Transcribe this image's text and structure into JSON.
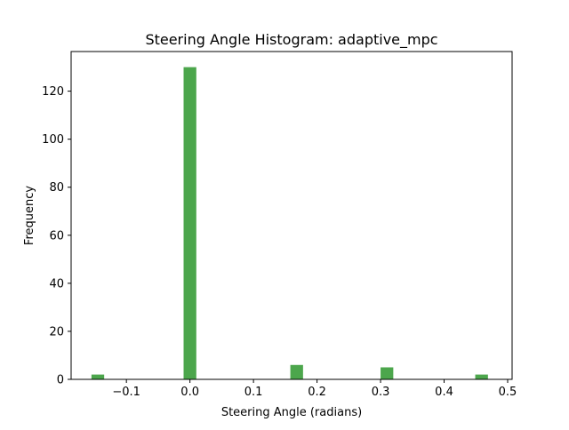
{
  "chart_data": {
    "type": "bar",
    "title": "Steering Angle Histogram: adaptive_mpc",
    "xlabel": "Steering Angle (radians)",
    "ylabel": "Frequency",
    "xlim": [
      -0.187,
      0.507
    ],
    "ylim": [
      0,
      136.5
    ],
    "xticks": [
      -0.1,
      0.0,
      0.1,
      0.2,
      0.3,
      0.4,
      0.5
    ],
    "xtick_labels": [
      "−0.1",
      "0.0",
      "0.1",
      "0.2",
      "0.3",
      "0.4",
      "0.5"
    ],
    "yticks": [
      0,
      20,
      40,
      60,
      80,
      100,
      120
    ],
    "ytick_labels": [
      "0",
      "20",
      "40",
      "60",
      "80",
      "100",
      "120"
    ],
    "bar_width": 0.02,
    "bars": [
      {
        "x": -0.145,
        "value": 2
      },
      {
        "x": 0.0,
        "value": 130
      },
      {
        "x": 0.168,
        "value": 6
      },
      {
        "x": 0.31,
        "value": 5
      },
      {
        "x": 0.459,
        "value": 2
      }
    ],
    "bar_color": "#4ca64c",
    "grid": false
  }
}
